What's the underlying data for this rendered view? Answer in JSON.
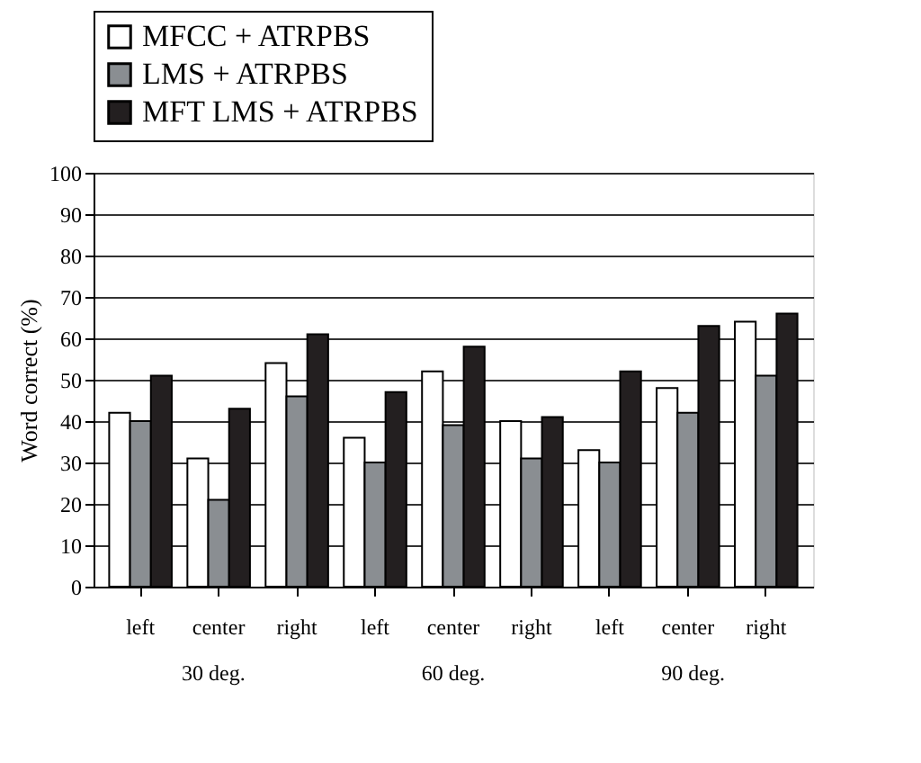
{
  "chart_data": {
    "type": "bar",
    "ylabel": "Word correct (%)",
    "categories": [
      "left",
      "center",
      "right",
      "left",
      "center",
      "right",
      "left",
      "center",
      "right"
    ],
    "series": [
      {
        "name": "MFCC + ATRPBS",
        "color": "#ffffff",
        "values": [
          42,
          31,
          54,
          36,
          52,
          40,
          33,
          48,
          64
        ]
      },
      {
        "name": "LMS + ATRPBS",
        "color": "#8a8e92",
        "values": [
          40,
          21,
          46,
          30,
          39,
          31,
          30,
          42,
          51
        ]
      },
      {
        "name": "MFT LMS + ATRPBS",
        "color": "#231f20",
        "values": [
          51,
          43,
          61,
          47,
          58,
          41,
          52,
          63,
          66
        ]
      }
    ],
    "annotations": [
      "30 deg.",
      "60 deg.",
      "90 deg."
    ],
    "ylim": [
      0,
      100
    ],
    "yticks": [
      0,
      10,
      20,
      30,
      40,
      50,
      60,
      70,
      80,
      90,
      100
    ],
    "grid": "y",
    "legend": "top"
  }
}
